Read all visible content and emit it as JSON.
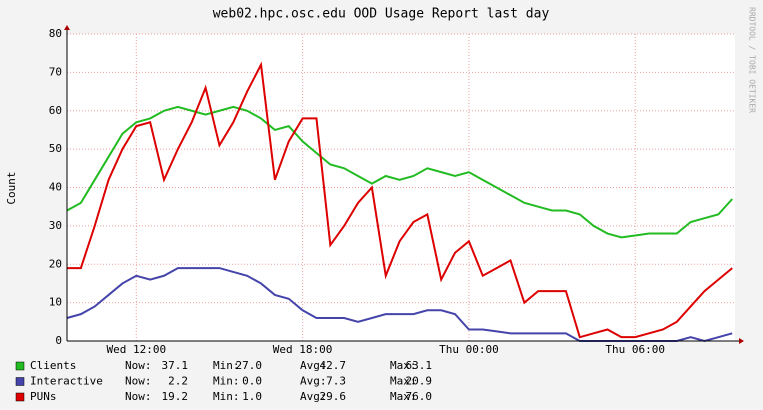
{
  "chart_data": {
    "type": "line",
    "title": "web02.hpc.osc.edu OOD Usage Report last day",
    "y_label": "Count",
    "watermark": "RRDTOOL / TOBI OETIKER",
    "x": [
      9.5,
      10,
      10.5,
      11,
      11.5,
      12,
      12.5,
      13,
      13.5,
      14,
      14.5,
      15,
      15.5,
      16,
      16.5,
      17,
      17.5,
      18,
      18.5,
      19,
      19.5,
      20,
      20.5,
      21,
      21.5,
      22,
      22.5,
      23,
      23.5,
      24,
      24.5,
      25,
      25.5,
      26,
      26.5,
      27,
      27.5,
      28,
      28.5,
      29,
      29.5,
      30,
      30.5,
      31,
      31.5,
      32,
      32.5,
      33,
      33.5
    ],
    "xlim": [
      9.5,
      33.6
    ],
    "xticks": [
      {
        "value": 12,
        "label": "Wed 12:00"
      },
      {
        "value": 18,
        "label": "Wed 18:00"
      },
      {
        "value": 24,
        "label": "Thu 00:00"
      },
      {
        "value": 30,
        "label": "Thu 06:00"
      }
    ],
    "ylim": [
      0,
      80
    ],
    "yticks": [
      0,
      10,
      20,
      30,
      40,
      50,
      60,
      70,
      80
    ],
    "grid": true,
    "legend_stat_labels": [
      "Now:",
      "Min:",
      "Avg:",
      "Max:"
    ],
    "series": [
      {
        "name": "Clients",
        "color": "#22bb22",
        "values": [
          34,
          36,
          42,
          48,
          54,
          57,
          58,
          60,
          61,
          60,
          59,
          60,
          61,
          60,
          58,
          55,
          56,
          52,
          49,
          46,
          45,
          43,
          41,
          43,
          42,
          43,
          45,
          44,
          43,
          44,
          42,
          40,
          38,
          36,
          35,
          34,
          34,
          33,
          30,
          28,
          27,
          27.5,
          28,
          28,
          28,
          31,
          32,
          33,
          37
        ],
        "stats": [
          37.1,
          {
            "value": 27,
            "label": "27.0"
          },
          42.7,
          63.1
        ]
      },
      {
        "name": "Interactive",
        "color": "#4444aa",
        "values": [
          6,
          7,
          9,
          12,
          15,
          17,
          16,
          17,
          19,
          19,
          19,
          19,
          18,
          17,
          15,
          12,
          11,
          8,
          6,
          6,
          6,
          5,
          6,
          7,
          7,
          7,
          8,
          8,
          7,
          3,
          3,
          2.5,
          2,
          2,
          2,
          2,
          2,
          0,
          0,
          0,
          0,
          0,
          0,
          0,
          0,
          1,
          0,
          1,
          2
        ],
        "stats": [
          2.2,
          {
            "value": 0,
            "label": "0.0"
          },
          7.3,
          20.9
        ]
      },
      {
        "name": "PUNs",
        "color": "#dd0000",
        "values": [
          19,
          19,
          30,
          42,
          50,
          56,
          57,
          42,
          50,
          57,
          66,
          51,
          57,
          65,
          72,
          42,
          52,
          58,
          58,
          25,
          30,
          36,
          40,
          17,
          26,
          31,
          33,
          16,
          23,
          26,
          17,
          19,
          21,
          10,
          13,
          13,
          13,
          1,
          2,
          3,
          1,
          1,
          2,
          3,
          5,
          9,
          13,
          16,
          19
        ],
        "stats": [
          19.2,
          {
            "value": 1,
            "label": "1.0"
          },
          29.6,
          {
            "value": 76,
            "label": "76.0"
          }
        ]
      }
    ]
  }
}
